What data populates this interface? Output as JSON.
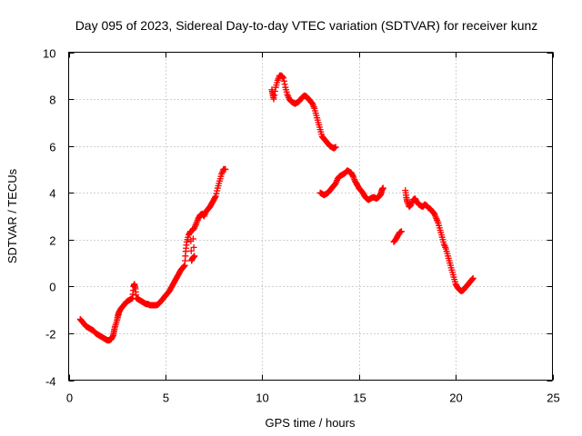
{
  "chart_data": {
    "type": "scatter",
    "title": "Day 095 of 2023, Sidereal Day-to-day VTEC variation (SDTVAR) for receiver kunz",
    "xlabel": "GPS time / hours",
    "ylabel": "SDTVAR / TECUs",
    "xlim": [
      0,
      25
    ],
    "ylim": [
      -4,
      10
    ],
    "xticks": [
      "0",
      "5",
      "10",
      "15",
      "20",
      "25"
    ],
    "yticks": [
      "-4",
      "-2",
      "0",
      "2",
      "4",
      "6",
      "8",
      "10"
    ],
    "grid": true,
    "marker": "+",
    "color": "#ff0000",
    "series": [
      {
        "name": "SDTVAR",
        "segments": [
          [
            [
              0.6,
              -1.4
            ],
            [
              0.7,
              -1.5
            ],
            [
              0.8,
              -1.6
            ],
            [
              0.9,
              -1.7
            ],
            [
              1.0,
              -1.75
            ],
            [
              1.1,
              -1.8
            ],
            [
              1.2,
              -1.85
            ],
            [
              1.3,
              -1.9
            ],
            [
              1.4,
              -2.0
            ],
            [
              1.5,
              -2.05
            ],
            [
              1.6,
              -2.1
            ],
            [
              1.7,
              -2.15
            ],
            [
              1.8,
              -2.2
            ],
            [
              1.9,
              -2.25
            ],
            [
              2.0,
              -2.3
            ],
            [
              2.1,
              -2.3
            ],
            [
              2.2,
              -2.25
            ],
            [
              2.3,
              -2.1
            ],
            [
              2.35,
              -1.9
            ],
            [
              2.4,
              -1.7
            ],
            [
              2.5,
              -1.45
            ],
            [
              2.55,
              -1.25
            ],
            [
              2.6,
              -1.1
            ],
            [
              2.7,
              -0.95
            ],
            [
              2.8,
              -0.85
            ],
            [
              2.9,
              -0.75
            ],
            [
              3.0,
              -0.65
            ],
            [
              3.1,
              -0.6
            ],
            [
              3.2,
              -0.55
            ],
            [
              3.3,
              -0.5
            ],
            [
              3.35,
              0.0
            ],
            [
              3.4,
              0.1
            ],
            [
              3.45,
              -0.1
            ],
            [
              3.5,
              -0.5
            ],
            [
              3.6,
              -0.55
            ],
            [
              3.7,
              -0.6
            ],
            [
              3.8,
              -0.65
            ],
            [
              3.9,
              -0.7
            ],
            [
              4.0,
              -0.75
            ],
            [
              4.1,
              -0.75
            ],
            [
              4.2,
              -0.8
            ],
            [
              4.3,
              -0.8
            ],
            [
              4.4,
              -0.8
            ],
            [
              4.5,
              -0.8
            ],
            [
              4.6,
              -0.78
            ],
            [
              4.7,
              -0.7
            ],
            [
              4.8,
              -0.6
            ],
            [
              4.9,
              -0.5
            ],
            [
              5.0,
              -0.4
            ],
            [
              5.1,
              -0.3
            ],
            [
              5.2,
              -0.2
            ],
            [
              5.3,
              -0.05
            ],
            [
              5.4,
              0.1
            ],
            [
              5.5,
              0.25
            ],
            [
              5.6,
              0.4
            ],
            [
              5.7,
              0.55
            ],
            [
              5.8,
              0.7
            ],
            [
              5.9,
              0.8
            ],
            [
              6.0,
              0.9
            ],
            [
              6.05,
              1.5
            ],
            [
              6.1,
              1.9
            ],
            [
              6.2,
              2.2
            ],
            [
              6.3,
              2.35
            ],
            [
              6.35,
              1.1
            ],
            [
              6.4,
              1.2
            ],
            [
              6.5,
              1.3
            ],
            [
              6.4,
              2.4
            ],
            [
              6.5,
              2.5
            ],
            [
              6.6,
              2.7
            ],
            [
              6.7,
              2.9
            ],
            [
              6.8,
              3.05
            ],
            [
              6.9,
              3.1
            ],
            [
              7.0,
              3.0
            ],
            [
              7.1,
              3.2
            ],
            [
              7.2,
              3.3
            ],
            [
              7.3,
              3.4
            ],
            [
              7.4,
              3.55
            ],
            [
              7.5,
              3.7
            ],
            [
              7.6,
              3.85
            ],
            [
              7.7,
              4.2
            ],
            [
              7.8,
              4.5
            ],
            [
              7.9,
              4.8
            ],
            [
              8.0,
              5.0
            ],
            [
              8.1,
              5.0
            ]
          ],
          [
            [
              10.5,
              8.4
            ],
            [
              10.55,
              8.2
            ],
            [
              10.6,
              8.0
            ],
            [
              10.7,
              8.5
            ],
            [
              10.8,
              8.8
            ],
            [
              10.9,
              9.0
            ],
            [
              11.0,
              9.0
            ],
            [
              11.1,
              8.9
            ],
            [
              11.2,
              8.5
            ],
            [
              11.3,
              8.2
            ],
            [
              11.4,
              8.0
            ],
            [
              11.5,
              7.9
            ],
            [
              11.6,
              7.85
            ],
            [
              11.7,
              7.8
            ],
            [
              11.8,
              7.85
            ],
            [
              11.9,
              7.9
            ],
            [
              12.0,
              8.0
            ],
            [
              12.1,
              8.1
            ],
            [
              12.2,
              8.15
            ],
            [
              12.3,
              8.1
            ],
            [
              12.4,
              8.0
            ],
            [
              12.5,
              7.9
            ],
            [
              12.6,
              7.8
            ],
            [
              12.7,
              7.6
            ],
            [
              12.8,
              7.3
            ],
            [
              12.9,
              7.0
            ],
            [
              13.0,
              6.7
            ],
            [
              13.1,
              6.4
            ],
            [
              13.2,
              6.3
            ],
            [
              13.3,
              6.2
            ],
            [
              13.4,
              6.1
            ],
            [
              13.5,
              6.0
            ],
            [
              13.6,
              5.95
            ],
            [
              13.7,
              5.9
            ],
            [
              13.8,
              5.95
            ]
          ],
          [
            [
              13.0,
              4.0
            ],
            [
              13.1,
              3.95
            ],
            [
              13.2,
              3.9
            ],
            [
              13.3,
              3.95
            ],
            [
              13.4,
              4.0
            ],
            [
              13.5,
              4.1
            ],
            [
              13.6,
              4.2
            ],
            [
              13.7,
              4.3
            ],
            [
              13.8,
              4.4
            ],
            [
              13.9,
              4.6
            ],
            [
              14.0,
              4.7
            ],
            [
              14.1,
              4.75
            ],
            [
              14.2,
              4.8
            ],
            [
              14.3,
              4.85
            ],
            [
              14.4,
              4.95
            ],
            [
              14.5,
              4.9
            ],
            [
              14.6,
              4.85
            ],
            [
              14.7,
              4.7
            ],
            [
              14.8,
              4.5
            ],
            [
              14.9,
              4.35
            ],
            [
              15.0,
              4.2
            ],
            [
              15.1,
              4.1
            ],
            [
              15.2,
              4.0
            ],
            [
              15.3,
              3.85
            ],
            [
              15.4,
              3.75
            ],
            [
              15.5,
              3.7
            ],
            [
              15.6,
              3.75
            ],
            [
              15.7,
              3.8
            ],
            [
              15.8,
              3.8
            ],
            [
              15.9,
              3.75
            ],
            [
              16.0,
              3.8
            ],
            [
              16.1,
              3.9
            ],
            [
              16.15,
              4.0
            ],
            [
              16.2,
              4.15
            ],
            [
              16.25,
              4.2
            ]
          ],
          [
            [
              16.8,
              1.9
            ],
            [
              16.9,
              2.0
            ],
            [
              17.0,
              2.15
            ],
            [
              17.1,
              2.3
            ],
            [
              17.2,
              2.35
            ]
          ],
          [
            [
              17.4,
              4.1
            ],
            [
              17.45,
              3.8
            ],
            [
              17.5,
              3.6
            ],
            [
              17.6,
              3.4
            ],
            [
              17.7,
              3.5
            ],
            [
              17.8,
              3.7
            ],
            [
              17.9,
              3.75
            ],
            [
              18.0,
              3.6
            ],
            [
              18.1,
              3.5
            ],
            [
              18.2,
              3.45
            ],
            [
              18.3,
              3.4
            ],
            [
              18.4,
              3.5
            ],
            [
              18.5,
              3.45
            ],
            [
              18.6,
              3.35
            ],
            [
              18.7,
              3.3
            ],
            [
              18.8,
              3.2
            ],
            [
              18.9,
              3.1
            ],
            [
              19.0,
              2.9
            ],
            [
              19.1,
              2.7
            ],
            [
              19.2,
              2.4
            ],
            [
              19.3,
              2.1
            ],
            [
              19.4,
              1.8
            ],
            [
              19.5,
              1.6
            ],
            [
              19.6,
              1.3
            ],
            [
              19.7,
              1.0
            ],
            [
              19.8,
              0.7
            ],
            [
              19.9,
              0.4
            ],
            [
              20.0,
              0.1
            ],
            [
              20.1,
              -0.05
            ],
            [
              20.2,
              -0.15
            ],
            [
              20.3,
              -0.2
            ],
            [
              20.4,
              -0.15
            ],
            [
              20.5,
              -0.05
            ],
            [
              20.6,
              0.05
            ],
            [
              20.7,
              0.15
            ],
            [
              20.8,
              0.25
            ],
            [
              20.9,
              0.35
            ]
          ]
        ]
      }
    ]
  }
}
